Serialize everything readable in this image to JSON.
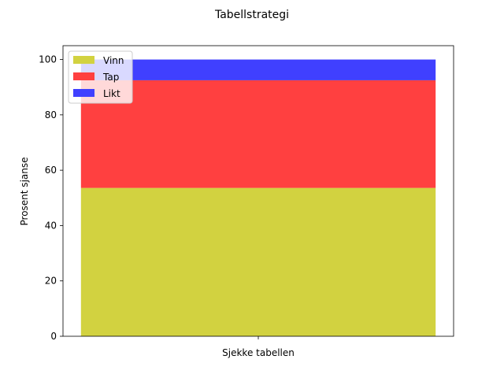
{
  "chart_data": {
    "type": "bar",
    "stacked": true,
    "title": "Tabellstrategi",
    "xlabel": "",
    "ylabel": "Prosent sjanse",
    "categories": [
      "Sjekke tabellen"
    ],
    "series": [
      {
        "name": "Vinn",
        "color": "#d2d240",
        "values": [
          53.6
        ]
      },
      {
        "name": "Tap",
        "color": "#ff4040",
        "values": [
          38.9
        ]
      },
      {
        "name": "Likt",
        "color": "#4040ff",
        "values": [
          7.5
        ]
      }
    ],
    "ylim": [
      0,
      105
    ],
    "yticks": [
      0,
      20,
      40,
      60,
      80,
      100
    ],
    "grid": false,
    "legend_position": "top-left"
  }
}
